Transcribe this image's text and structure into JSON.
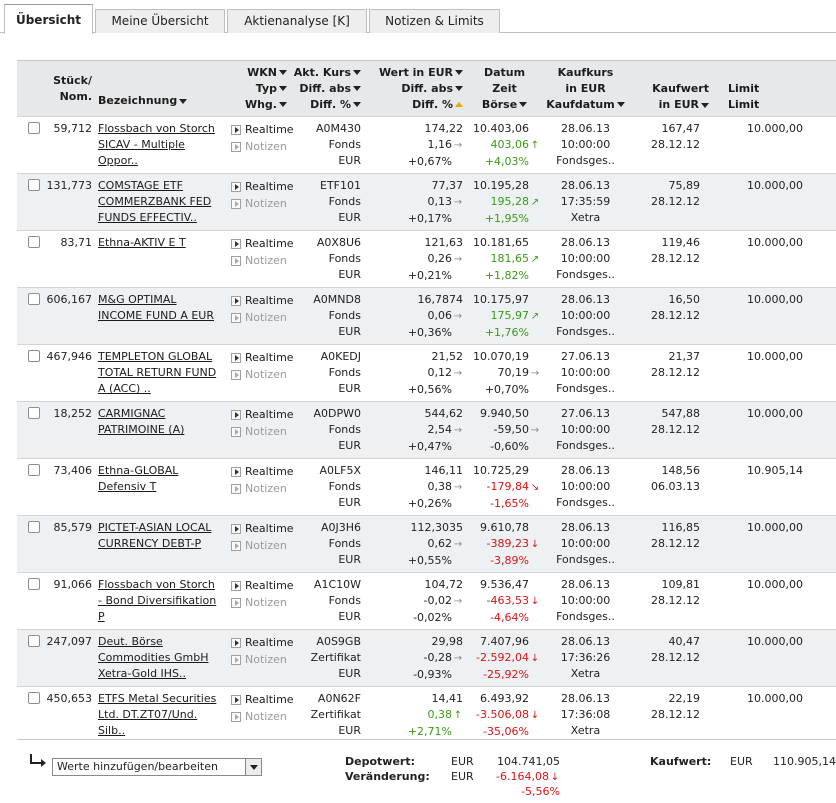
{
  "tabs": [
    {
      "label": "Übersicht",
      "active": true
    },
    {
      "label": "Meine Übersicht",
      "active": false
    },
    {
      "label": "Aktienanalyse [K]",
      "active": false
    },
    {
      "label": "Notizen & Limits",
      "active": false
    }
  ],
  "headers": {
    "stueck": [
      "Stück/",
      "Nom."
    ],
    "bezeichnung": "Bezeichnung",
    "wkn": [
      "WKN",
      "Typ",
      "Whg."
    ],
    "kurs": [
      "Akt. Kurs",
      "Diff. abs",
      "Diff. %"
    ],
    "wert": [
      "Wert in EUR",
      "Diff. abs",
      "Diff. %"
    ],
    "datum": [
      "Datum",
      "Zeit",
      "Börse"
    ],
    "kaufkurs": [
      "Kaufkurs",
      "in EUR",
      "Kaufdatum"
    ],
    "kaufwert": [
      "Kaufwert",
      "in EUR"
    ],
    "limit": [
      "Limit",
      "Limit"
    ]
  },
  "actions": {
    "realtime": "Realtime",
    "notizen": "Notizen"
  },
  "colors": {
    "positive": "#3a9b16",
    "negative": "#d41515",
    "header_bg": "#e6e8ea",
    "row_alt_bg": "#eef1f4"
  },
  "rows": [
    {
      "stueck": "59,712",
      "name": [
        "Flossbach von Storch",
        "SICAV - Multiple",
        "Oppor.."
      ],
      "wkn": "A0M430",
      "typ": "Fonds",
      "whg": "EUR",
      "kurs": "174,22",
      "kurs_diff": "1,16",
      "kurs_arrow": "right",
      "kurs_pct": "+0,67%",
      "wert": "10.403,06",
      "wert_diff": "403,06",
      "wert_arrow": "up",
      "wert_pct": "+4,03%",
      "wert_sign": "pos",
      "datum": "28.06.13",
      "zeit": "10:00:00",
      "boerse": "Fondsges..",
      "kaufkurs": "167,47",
      "kaufdatum": "28.12.12",
      "kaufwert": "10.000,00"
    },
    {
      "stueck": "131,773",
      "name": [
        "COMSTAGE ETF",
        "COMMERZBANK FED",
        "FUNDS EFFECTIV.."
      ],
      "wkn": "ETF101",
      "typ": "Fonds",
      "whg": "EUR",
      "kurs": "77,37",
      "kurs_diff": "0,13",
      "kurs_arrow": "right",
      "kurs_pct": "+0,17%",
      "wert": "10.195,28",
      "wert_diff": "195,28",
      "wert_arrow": "upright",
      "wert_pct": "+1,95%",
      "wert_sign": "pos",
      "datum": "28.06.13",
      "zeit": "17:35:59",
      "boerse": "Xetra",
      "kaufkurs": "75,89",
      "kaufdatum": "28.12.12",
      "kaufwert": "10.000,00"
    },
    {
      "stueck": "83,71",
      "name": [
        "Ethna-AKTIV E T"
      ],
      "wkn": "A0X8U6",
      "typ": "Fonds",
      "whg": "EUR",
      "kurs": "121,63",
      "kurs_diff": "0,26",
      "kurs_arrow": "right",
      "kurs_pct": "+0,21%",
      "wert": "10.181,65",
      "wert_diff": "181,65",
      "wert_arrow": "upright",
      "wert_pct": "+1,82%",
      "wert_sign": "pos",
      "datum": "28.06.13",
      "zeit": "10:00:00",
      "boerse": "Fondsges..",
      "kaufkurs": "119,46",
      "kaufdatum": "28.12.12",
      "kaufwert": "10.000,00"
    },
    {
      "stueck": "606,167",
      "name": [
        "M&G OPTIMAL",
        "INCOME FUND A EUR"
      ],
      "wkn": "A0MND8",
      "typ": "Fonds",
      "whg": "EUR",
      "kurs": "16,7874",
      "kurs_diff": "0,06",
      "kurs_arrow": "right",
      "kurs_pct": "+0,36%",
      "wert": "10.175,97",
      "wert_diff": "175,97",
      "wert_arrow": "upright",
      "wert_pct": "+1,76%",
      "wert_sign": "pos",
      "datum": "28.06.13",
      "zeit": "10:00:00",
      "boerse": "Fondsges..",
      "kaufkurs": "16,50",
      "kaufdatum": "28.12.12",
      "kaufwert": "10.000,00"
    },
    {
      "stueck": "467,946",
      "name": [
        "TEMPLETON GLOBAL",
        "TOTAL RETURN FUND",
        "A (ACC) .."
      ],
      "wkn": "A0KEDJ",
      "typ": "Fonds",
      "whg": "EUR",
      "kurs": "21,52",
      "kurs_diff": "0,12",
      "kurs_arrow": "right",
      "kurs_pct": "+0,56%",
      "wert": "10.070,19",
      "wert_diff": "70,19",
      "wert_arrow": "right",
      "wert_pct": "+0,70%",
      "wert_sign": "neutral",
      "datum": "27.06.13",
      "zeit": "10:00:00",
      "boerse": "Fondsges..",
      "kaufkurs": "21,37",
      "kaufdatum": "28.12.12",
      "kaufwert": "10.000,00"
    },
    {
      "stueck": "18,252",
      "name": [
        "CARMIGNAC",
        "PATRIMOINE (A)"
      ],
      "wkn": "A0DPW0",
      "typ": "Fonds",
      "whg": "EUR",
      "kurs": "544,62",
      "kurs_diff": "2,54",
      "kurs_arrow": "right",
      "kurs_pct": "+0,47%",
      "wert": "9.940,50",
      "wert_diff": "-59,50",
      "wert_arrow": "right",
      "wert_pct": "-0,60%",
      "wert_sign": "neutral",
      "datum": "27.06.13",
      "zeit": "10:00:00",
      "boerse": "Fondsges..",
      "kaufkurs": "547,88",
      "kaufdatum": "28.12.12",
      "kaufwert": "10.000,00"
    },
    {
      "stueck": "73,406",
      "name": [
        "Ethna-GLOBAL",
        "Defensiv T"
      ],
      "wkn": "A0LF5X",
      "typ": "Fonds",
      "whg": "EUR",
      "kurs": "146,11",
      "kurs_diff": "0,38",
      "kurs_arrow": "right",
      "kurs_pct": "+0,26%",
      "wert": "10.725,29",
      "wert_diff": "-179,84",
      "wert_arrow": "downright",
      "wert_pct": "-1,65%",
      "wert_sign": "neg",
      "datum": "28.06.13",
      "zeit": "10:00:00",
      "boerse": "Fondsges..",
      "kaufkurs": "148,56",
      "kaufdatum": "06.03.13",
      "kaufwert": "10.905,14"
    },
    {
      "stueck": "85,579",
      "name": [
        "PICTET-ASIAN LOCAL",
        "CURRENCY DEBT-P"
      ],
      "wkn": "A0J3H6",
      "typ": "Fonds",
      "whg": "EUR",
      "kurs": "112,3035",
      "kurs_diff": "0,62",
      "kurs_arrow": "right",
      "kurs_pct": "+0,55%",
      "wert": "9.610,78",
      "wert_diff": "-389,23",
      "wert_arrow": "down",
      "wert_pct": "-3,89%",
      "wert_sign": "neg",
      "datum": "28.06.13",
      "zeit": "10:00:00",
      "boerse": "Fondsges..",
      "kaufkurs": "116,85",
      "kaufdatum": "28.12.12",
      "kaufwert": "10.000,00"
    },
    {
      "stueck": "91,066",
      "name": [
        "Flossbach von Storch",
        "- Bond Diversifikation",
        "P"
      ],
      "wkn": "A1C10W",
      "typ": "Fonds",
      "whg": "EUR",
      "kurs": "104,72",
      "kurs_diff": "-0,02",
      "kurs_arrow": "right",
      "kurs_pct": "-0,02%",
      "wert": "9.536,47",
      "wert_diff": "-463,53",
      "wert_arrow": "down",
      "wert_pct": "-4,64%",
      "wert_sign": "neg",
      "datum": "28.06.13",
      "zeit": "10:00:00",
      "boerse": "Fondsges..",
      "kaufkurs": "109,81",
      "kaufdatum": "28.12.12",
      "kaufwert": "10.000,00"
    },
    {
      "stueck": "247,097",
      "name": [
        "Deut. Börse",
        "Commodities GmbH",
        "Xetra-Gold IHS.."
      ],
      "wkn": "A0S9GB",
      "typ": "Zertifikat",
      "whg": "EUR",
      "kurs": "29,98",
      "kurs_diff": "-0,28",
      "kurs_arrow": "right",
      "kurs_pct": "-0,93%",
      "wert": "7.407,96",
      "wert_diff": "-2.592,04",
      "wert_arrow": "down",
      "wert_pct": "-25,92%",
      "wert_sign": "neg",
      "datum": "28.06.13",
      "zeit": "17:36:26",
      "boerse": "Xetra",
      "kaufkurs": "40,47",
      "kaufdatum": "28.12.12",
      "kaufwert": "10.000,00"
    },
    {
      "stueck": "450,653",
      "name": [
        "ETFS Metal Securities",
        "Ltd. DT.ZT07/Und.",
        "Silb.."
      ],
      "wkn": "A0N62F",
      "typ": "Zertifikat",
      "whg": "EUR",
      "kurs": "14,41",
      "kurs_diff": "0,38",
      "kurs_arrow": "up",
      "kurs_pct": "+2,71%",
      "kurs_sign": "pos",
      "wert": "6.493,92",
      "wert_diff": "-3.506,08",
      "wert_arrow": "down",
      "wert_pct": "-35,06%",
      "wert_sign": "neg",
      "datum": "28.06.13",
      "zeit": "17:36:08",
      "boerse": "Xetra",
      "kaufkurs": "22,19",
      "kaufdatum": "28.12.12",
      "kaufwert": "10.000,00"
    }
  ],
  "footer": {
    "select_value": "Werte hinzufügen/bearbeiten",
    "depotwert_label": "Depotwert:",
    "depotwert_currency": "EUR",
    "depotwert_value": "104.741,05",
    "veraenderung_label": "Veränderung:",
    "veraenderung_currency": "EUR",
    "veraenderung_value": "-6.164,08",
    "veraenderung_pct": "-5,56%",
    "kaufwert_label": "Kaufwert:",
    "kaufwert_currency": "EUR",
    "kaufwert_value": "110.905,14"
  }
}
